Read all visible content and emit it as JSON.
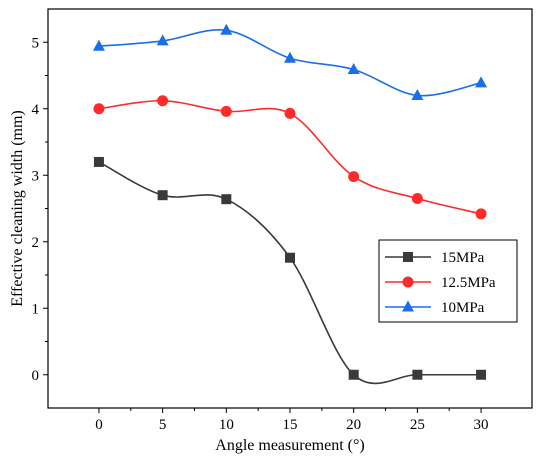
{
  "chart_data": {
    "type": "line",
    "xlabel": "Angle measurement (°)",
    "ylabel": "Effective cleaning width (mm)",
    "xlim": [
      -4,
      34
    ],
    "ylim": [
      -0.5,
      5.5
    ],
    "xticks": [
      0,
      5,
      10,
      15,
      20,
      25,
      30
    ],
    "yticks": [
      0,
      1,
      2,
      3,
      4,
      5
    ],
    "grid": false,
    "legend_position": "lower-right",
    "series": [
      {
        "name": "15MPa",
        "color": "#3a3a3a",
        "marker": "square",
        "x": [
          0,
          5,
          10,
          15,
          20,
          25,
          30
        ],
        "y": [
          3.2,
          2.7,
          2.64,
          1.76,
          0.0,
          0.0,
          0.0
        ]
      },
      {
        "name": "12.5MPa",
        "color": "#ff2a2a",
        "marker": "circle",
        "x": [
          0,
          5,
          10,
          15,
          20,
          25,
          30
        ],
        "y": [
          4.0,
          4.12,
          3.96,
          3.93,
          2.98,
          2.65,
          2.42
        ]
      },
      {
        "name": "10MPa",
        "color": "#1a6fe8",
        "marker": "triangle",
        "x": [
          0,
          5,
          10,
          15,
          20,
          25,
          30
        ],
        "y": [
          4.94,
          5.02,
          5.18,
          4.76,
          4.59,
          4.2,
          4.39
        ]
      }
    ]
  }
}
